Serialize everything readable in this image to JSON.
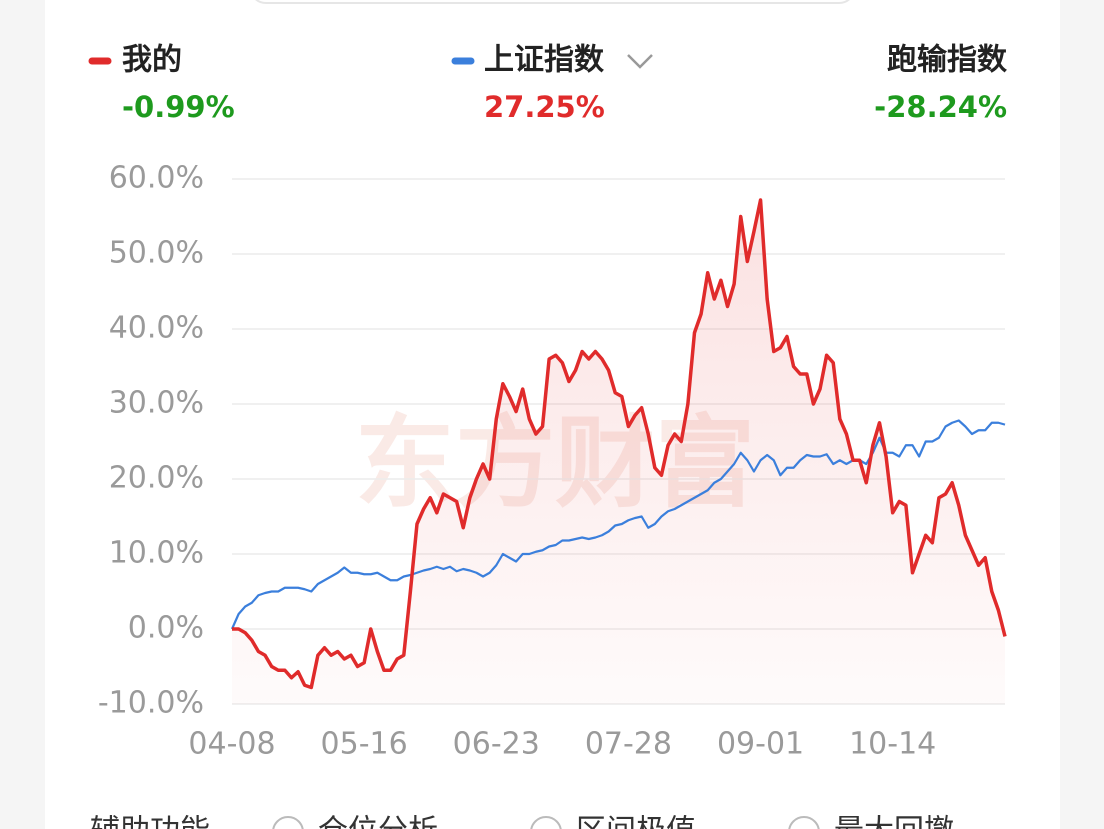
{
  "chart_data": {
    "type": "line",
    "categories": [
      "04-08",
      null,
      null,
      null,
      null,
      null,
      null,
      null,
      null,
      null,
      null,
      null,
      null,
      null,
      null,
      null,
      null,
      null,
      null,
      null,
      "05-16",
      null,
      null,
      null,
      null,
      null,
      null,
      null,
      null,
      null,
      null,
      null,
      null,
      null,
      null,
      null,
      null,
      null,
      null,
      null,
      "06-23",
      null,
      null,
      null,
      null,
      null,
      null,
      null,
      null,
      null,
      null,
      null,
      null,
      null,
      null,
      null,
      null,
      null,
      null,
      null,
      "07-28",
      null,
      null,
      null,
      null,
      null,
      null,
      null,
      null,
      null,
      null,
      null,
      null,
      null,
      null,
      null,
      null,
      null,
      null,
      null,
      "09-01",
      null,
      null,
      null,
      null,
      null,
      null,
      null,
      null,
      null,
      null,
      null,
      null,
      null,
      null,
      null,
      null,
      null,
      null,
      null,
      "10-14",
      null,
      null,
      null,
      null,
      null,
      null,
      null,
      null,
      null,
      null,
      null,
      null,
      null,
      null,
      null,
      null,
      null
    ],
    "series": [
      {
        "name": "我的",
        "color": "#e02b2b",
        "values": [
          0,
          0,
          -0.5,
          -1.5,
          -3,
          -3.5,
          -5,
          -5.5,
          -5.5,
          -6.5,
          -5.7,
          -7.5,
          -7.8,
          -3.5,
          -2.5,
          -3.5,
          -3,
          -4,
          -3.5,
          -5,
          -4.5,
          0,
          -3,
          -5.5,
          -5.5,
          -4,
          -3.5,
          5,
          14,
          16,
          17.5,
          15.5,
          18,
          17.5,
          17,
          13.5,
          17.5,
          20,
          22,
          20,
          28,
          32.7,
          31,
          29,
          32,
          28,
          26,
          27,
          36,
          36.5,
          35.5,
          33,
          34.5,
          37,
          36,
          37,
          36,
          34.5,
          31.5,
          31,
          27,
          28.5,
          29.5,
          26,
          21.5,
          20.5,
          24.5,
          26,
          25,
          30,
          39.5,
          42,
          47.5,
          44,
          46.5,
          43,
          46,
          55,
          49,
          53,
          57.2,
          44,
          37,
          37.5,
          39,
          35,
          34,
          34,
          30,
          32,
          36.5,
          35.5,
          28,
          26,
          22.5,
          22.5,
          19.5,
          24.5,
          27.5,
          23,
          15.5,
          17,
          16.5,
          7.5,
          10,
          12.5,
          11.5,
          17.5,
          18,
          19.5,
          16.5,
          12.5,
          10.5,
          8.5,
          9.5,
          5,
          2.5,
          -0.99
        ]
      },
      {
        "name": "上证指数",
        "color": "#3b7fdc",
        "values": [
          0,
          2,
          3,
          3.5,
          4.5,
          4.8,
          5,
          5,
          5.5,
          5.5,
          5.5,
          5.3,
          5,
          6,
          6.5,
          7,
          7.5,
          8.2,
          7.5,
          7.5,
          7.3,
          7.3,
          7.5,
          7,
          6.5,
          6.5,
          7,
          7.2,
          7.5,
          7.8,
          8,
          8.3,
          8,
          8.3,
          7.7,
          8,
          7.8,
          7.5,
          7,
          7.5,
          8.5,
          10,
          9.5,
          9,
          10,
          10,
          10.3,
          10.5,
          11,
          11.2,
          11.8,
          11.8,
          12,
          12.2,
          12,
          12.2,
          12.5,
          13,
          13.8,
          14,
          14.5,
          14.8,
          15,
          13.5,
          14,
          15,
          15.7,
          16,
          16.5,
          17,
          17.5,
          18,
          18.5,
          19.5,
          20,
          21,
          22,
          23.5,
          22.5,
          21,
          22.5,
          23.2,
          22.5,
          20.5,
          21.5,
          21.5,
          22.5,
          23.2,
          23,
          23,
          23.3,
          22,
          22.5,
          22,
          22.5,
          22.5,
          22,
          23.5,
          25.5,
          23.5,
          23.5,
          23,
          24.5,
          24.5,
          23,
          25,
          25,
          25.5,
          27,
          27.5,
          27.8,
          27,
          26,
          26.5,
          26.5,
          27.5,
          27.5,
          27.25
        ]
      }
    ],
    "returns": [
      {
        "text": "-0.99%",
        "color": "#1e9a1e"
      },
      {
        "text": "27.25%",
        "color": "#e02b2b"
      }
    ],
    "excess": {
      "label": "跑输指数",
      "text": "-28.24%",
      "color": "#1e9a1e"
    },
    "ylim": [
      -10,
      60
    ],
    "yticks": [
      {
        "value": -10,
        "label": "-10.0%"
      },
      {
        "value": 0,
        "label": "0.0%"
      },
      {
        "value": 10,
        "label": "10.0%"
      },
      {
        "value": 20,
        "label": "20.0%"
      },
      {
        "value": 30,
        "label": "30.0%"
      },
      {
        "value": 40,
        "label": "40.0%"
      },
      {
        "value": 50,
        "label": "50.0%"
      },
      {
        "value": 60,
        "label": "60.0%"
      }
    ],
    "grid": true,
    "watermark": "东方财富"
  },
  "footer": {
    "title": "辅助功能",
    "options": [
      "仓位分析",
      "区间极值",
      "最大回撤"
    ]
  }
}
